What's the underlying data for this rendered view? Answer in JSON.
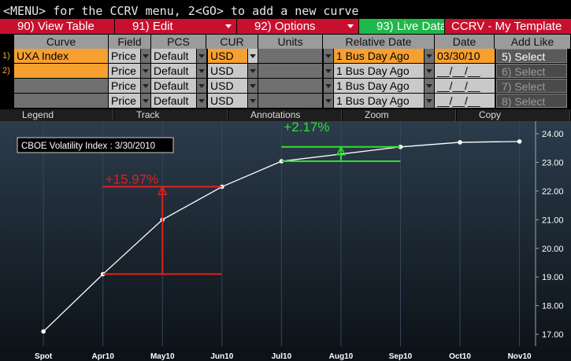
{
  "status_line": "<MENU> for the CCRV menu, 2<GO> to add a new curve",
  "menu": [
    "90) View Table",
    "91) Edit",
    "92) Options",
    "93) Live Data",
    "CCRV - My Template"
  ],
  "table": {
    "headers": [
      "Curve",
      "Field",
      "PCS",
      "CUR",
      "Units",
      "Relative Date",
      "Date",
      "Add Like"
    ],
    "rows": [
      {
        "num": "1)",
        "curve": "UXA Index",
        "field": "Price",
        "pcs": "Default",
        "cur": "USD",
        "rel": "1 Bus Day Ago",
        "date": "03/30/10",
        "add": "5) Select"
      },
      {
        "num": "2)",
        "field": "Price",
        "pcs": "Default",
        "cur": "USD",
        "rel": "1 Bus Day Ago",
        "date": "__/__/__",
        "add": "6) Select"
      },
      {
        "field": "Price",
        "pcs": "Default",
        "cur": "USD",
        "rel": "1 Bus Day Ago",
        "date": "__/__/__",
        "add": "7) Select"
      },
      {
        "field": "Price",
        "pcs": "Default",
        "cur": "USD",
        "rel": "1 Bus Day Ago",
        "date": "__/__/__",
        "add": "8) Select"
      }
    ]
  },
  "toolbar": [
    "Legend",
    "Track",
    "Annotations",
    "Zoom",
    "Copy"
  ],
  "chart_data": {
    "type": "line",
    "legend": "CBOE Volatility Index : 3/30/2010",
    "series": [
      {
        "name": "CBOE Volatility Index : 3/30/2010",
        "color": "#ffffff",
        "x": [
          0,
          1,
          2,
          3,
          4,
          6,
          7,
          8
        ],
        "values": [
          17.1,
          19.1,
          21.0,
          22.15,
          23.04,
          23.54,
          23.7,
          23.73
        ]
      }
    ],
    "xlim": [
      -0.73,
      8.27
    ],
    "xticks": [
      {
        "value": 0,
        "label": "Spot"
      },
      {
        "value": 1,
        "label": "Apr10"
      },
      {
        "value": 2,
        "label": "May10"
      },
      {
        "value": 3,
        "label": "Jun10"
      },
      {
        "value": 4,
        "label": "Jul10"
      },
      {
        "value": 5,
        "label": "Aug10"
      },
      {
        "value": 6,
        "label": "Sep10"
      },
      {
        "value": 7,
        "label": "Oct10"
      },
      {
        "value": 8,
        "label": "Nov10"
      }
    ],
    "ylim": [
      16.59,
      24.44
    ],
    "yticks": [
      {
        "value": 17,
        "label": "17.00"
      },
      {
        "value": 18,
        "label": "18.00"
      },
      {
        "value": 19,
        "label": "19.00"
      },
      {
        "value": 20,
        "label": "20.00"
      },
      {
        "value": 21,
        "label": "21.00"
      },
      {
        "value": 22,
        "label": "22.00"
      },
      {
        "value": 23,
        "label": "23.00"
      },
      {
        "value": 24,
        "label": "24.00"
      }
    ],
    "grid": true,
    "annotations": [
      {
        "text": "+15.97%",
        "color": "#e3201c"
      },
      {
        "text": "+2.17%",
        "color": "#2fe02f"
      }
    ]
  }
}
